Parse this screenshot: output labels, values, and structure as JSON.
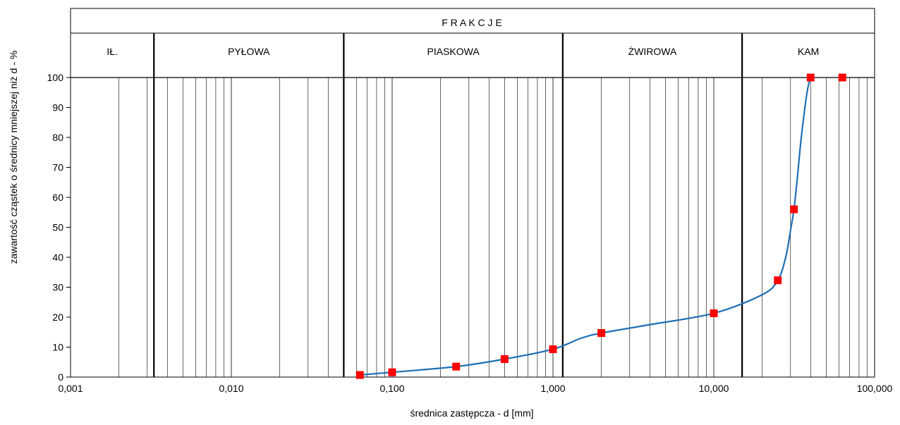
{
  "chart_data": {
    "type": "line",
    "header_title": "F R A K C J E",
    "fractions": [
      {
        "label": "IŁ.",
        "x_from": 0.001,
        "x_to": 0.0033
      },
      {
        "label": "PYŁOWA",
        "x_from": 0.0033,
        "x_to": 0.05
      },
      {
        "label": "PIASKOWA",
        "x_from": 0.05,
        "x_to": 1.15
      },
      {
        "label": "ŻWIROWA",
        "x_from": 1.15,
        "x_to": 15
      },
      {
        "label": "KAM",
        "x_from": 15,
        "x_to": 100
      }
    ],
    "fraction_boundaries": [
      0.0033,
      0.05,
      1.15,
      15
    ],
    "xlabel": "średnica zastępcza - d [mm]",
    "ylabel": "zawartość cząstek o średnicy mniejszej niż d - %",
    "x_scale": "log",
    "xlim": [
      0.001,
      100
    ],
    "ylim": [
      0,
      100
    ],
    "x_tick_values": [
      0.001,
      0.01,
      0.1,
      1,
      10,
      100
    ],
    "x_tick_labels": [
      "0,001",
      "0,010",
      "0,100",
      "1,000",
      "10,000",
      "100,000"
    ],
    "y_tick_values": [
      0,
      10,
      20,
      30,
      40,
      50,
      60,
      70,
      80,
      90,
      100
    ],
    "y_tick_labels": [
      "0",
      "10",
      "20",
      "30",
      "40",
      "50",
      "60",
      "70",
      "80",
      "90",
      "100"
    ],
    "grid": "vertical log minor lines, horizontal ticks only",
    "series": [
      {
        "marker": "square",
        "marker_color": "#ff0000",
        "line_color": "#1f6fb5",
        "x": [
          0.063,
          0.1,
          0.25,
          0.5,
          1,
          2,
          10,
          25,
          31.5,
          40,
          63
        ],
        "y": [
          0.7,
          1.6,
          3.5,
          6.0,
          9.3,
          14.7,
          21.3,
          32.3,
          56.0,
          100,
          100
        ]
      }
    ],
    "curve": {
      "x": [
        0.063,
        0.1,
        0.25,
        0.5,
        1,
        1.5,
        2,
        4,
        10,
        20,
        25,
        28,
        30,
        31.5,
        33,
        35,
        38,
        40
      ],
      "y": [
        0.7,
        1.6,
        3.5,
        6.0,
        9.3,
        13.0,
        14.7,
        17.5,
        21.3,
        27.5,
        32.3,
        40,
        49,
        56,
        66,
        80,
        95,
        100
      ]
    }
  }
}
